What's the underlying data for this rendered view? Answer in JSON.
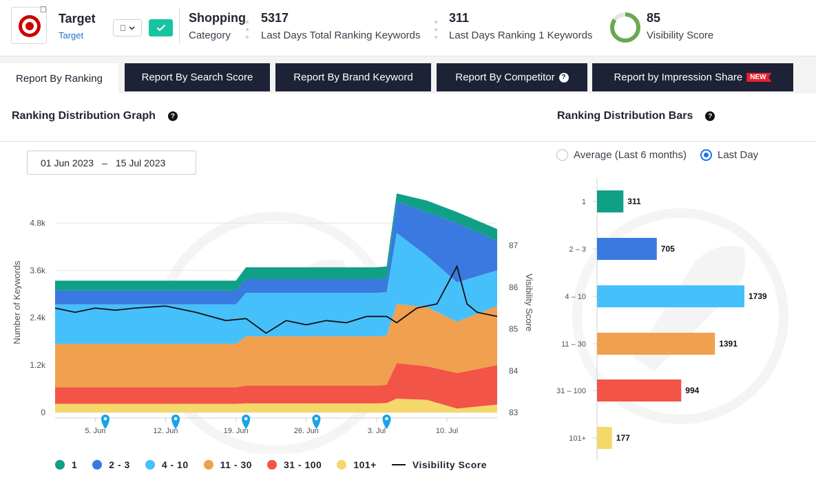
{
  "header": {
    "brand_name": "Target",
    "brand_link": "Target",
    "os_icon": "apple-icon",
    "stats": [
      {
        "value": "Shopping",
        "label": "Category"
      },
      {
        "value": "5317",
        "label": "Last Days Total Ranking Keywords"
      },
      {
        "value": "311",
        "label": "Last Days Ranking 1 Keywords"
      },
      {
        "value": "85",
        "label": "Visibility Score"
      }
    ],
    "visibility_ring_fraction": 0.85,
    "colors": {
      "brand_red": "#cc0000",
      "confirm_green": "#18c4a0",
      "ring_green": "#6aa84f"
    }
  },
  "tabs": [
    {
      "label": "Report By Ranking",
      "active": true
    },
    {
      "label": "Report By Search Score",
      "active": false
    },
    {
      "label": "Report By Brand Keyword",
      "active": false
    },
    {
      "label": "Report By Competitor",
      "active": false,
      "help": "?"
    },
    {
      "label": "Report by Impression Share",
      "active": false,
      "badge": "NEW"
    }
  ],
  "graph_section": {
    "title": "Ranking Distribution Graph",
    "help": "?"
  },
  "bars_section": {
    "title": "Ranking Distribution Bars",
    "help": "?"
  },
  "date_range": {
    "start": "01 Jun 2023",
    "separator": "–",
    "end": "15 Jul 2023"
  },
  "radio_options": [
    {
      "label": "Average (Last 6 months)",
      "selected": false
    },
    {
      "label": "Last Day",
      "selected": true
    }
  ],
  "chart_data": [
    {
      "type": "area",
      "stacked": true,
      "ylabel": "Number of Keywords",
      "y2label": "Visibility Score",
      "ylim": [
        0,
        5400
      ],
      "y2lim": [
        83,
        87
      ],
      "yticks": [
        "0",
        "1.2k",
        "2.4k",
        "3.6k",
        "4.8k"
      ],
      "y2ticks": [
        "83",
        "84",
        "85",
        "86",
        "87"
      ],
      "xlim": [
        "2023-06-01",
        "2023-07-15"
      ],
      "xticks": [
        "5. Jun",
        "12. Jun",
        "19. Jun",
        "26. Jun",
        "3. Jul",
        "10. Jul"
      ],
      "xtick_dates": [
        "2023-06-05",
        "2023-06-12",
        "2023-06-19",
        "2023-06-26",
        "2023-07-03",
        "2023-07-10"
      ],
      "annotation_marker_dates": [
        "2023-06-06",
        "2023-06-13",
        "2023-06-20",
        "2023-06-27",
        "2023-07-04"
      ],
      "x": [
        "2023-06-01",
        "2023-06-19",
        "2023-06-20",
        "2023-07-03",
        "2023-07-04",
        "2023-07-05",
        "2023-07-08",
        "2023-07-11",
        "2023-07-15"
      ],
      "series": [
        {
          "name": "101+",
          "color": "#f4d86b",
          "values": [
            220,
            220,
            230,
            230,
            240,
            350,
            320,
            100,
            200
          ]
        },
        {
          "name": "31 - 100",
          "color": "#f25447",
          "values": [
            420,
            420,
            450,
            450,
            460,
            900,
            850,
            900,
            1000
          ]
        },
        {
          "name": "11 - 30",
          "color": "#f0a04e",
          "values": [
            1100,
            1100,
            1250,
            1250,
            1250,
            1500,
            1500,
            1300,
            1500
          ]
        },
        {
          "name": "4 - 10",
          "color": "#46c0fa",
          "values": [
            1000,
            1000,
            1100,
            1100,
            1100,
            1800,
            1300,
            1000,
            900
          ]
        },
        {
          "name": "2 - 3",
          "color": "#3a79e0",
          "values": [
            350,
            350,
            350,
            350,
            350,
            800,
            1100,
            1500,
            750
          ]
        },
        {
          "name": "1",
          "color": "#10a085",
          "values": [
            250,
            250,
            300,
            300,
            300,
            200,
            300,
            280,
            300
          ]
        }
      ],
      "line_series": {
        "name": "Visibility Score",
        "color": "#111111",
        "x": [
          "2023-06-01",
          "2023-06-03",
          "2023-06-05",
          "2023-06-07",
          "2023-06-09",
          "2023-06-12",
          "2023-06-15",
          "2023-06-18",
          "2023-06-20",
          "2023-06-22",
          "2023-06-24",
          "2023-06-26",
          "2023-06-28",
          "2023-06-30",
          "2023-07-02",
          "2023-07-04",
          "2023-07-05",
          "2023-07-07",
          "2023-07-09",
          "2023-07-11",
          "2023-07-12",
          "2023-07-13",
          "2023-07-15"
        ],
        "values": [
          85.5,
          85.4,
          85.5,
          85.45,
          85.5,
          85.55,
          85.4,
          85.2,
          85.25,
          84.9,
          85.2,
          85.1,
          85.2,
          85.15,
          85.3,
          85.3,
          85.15,
          85.5,
          85.6,
          86.5,
          85.6,
          85.4,
          85.3
        ]
      }
    },
    {
      "type": "bar",
      "orientation": "horizontal",
      "categories": [
        "1",
        "2 – 3",
        "4 – 10",
        "11 – 30",
        "31 – 100",
        "101+"
      ],
      "values": [
        311,
        705,
        1739,
        1391,
        994,
        177
      ],
      "colors": [
        "#10a085",
        "#3a79e0",
        "#46c0fa",
        "#f0a04e",
        "#f25447",
        "#f4d86b"
      ]
    }
  ],
  "legend": [
    {
      "label": "1",
      "color": "#10a085"
    },
    {
      "label": "2 - 3",
      "color": "#3a79e0"
    },
    {
      "label": "4 - 10",
      "color": "#46c0fa"
    },
    {
      "label": "11 - 30",
      "color": "#f0a04e"
    },
    {
      "label": "31 - 100",
      "color": "#f25447"
    },
    {
      "label": "101+",
      "color": "#f4d86b"
    },
    {
      "label": "Visibility Score",
      "color": "#111111",
      "kind": "line"
    }
  ]
}
